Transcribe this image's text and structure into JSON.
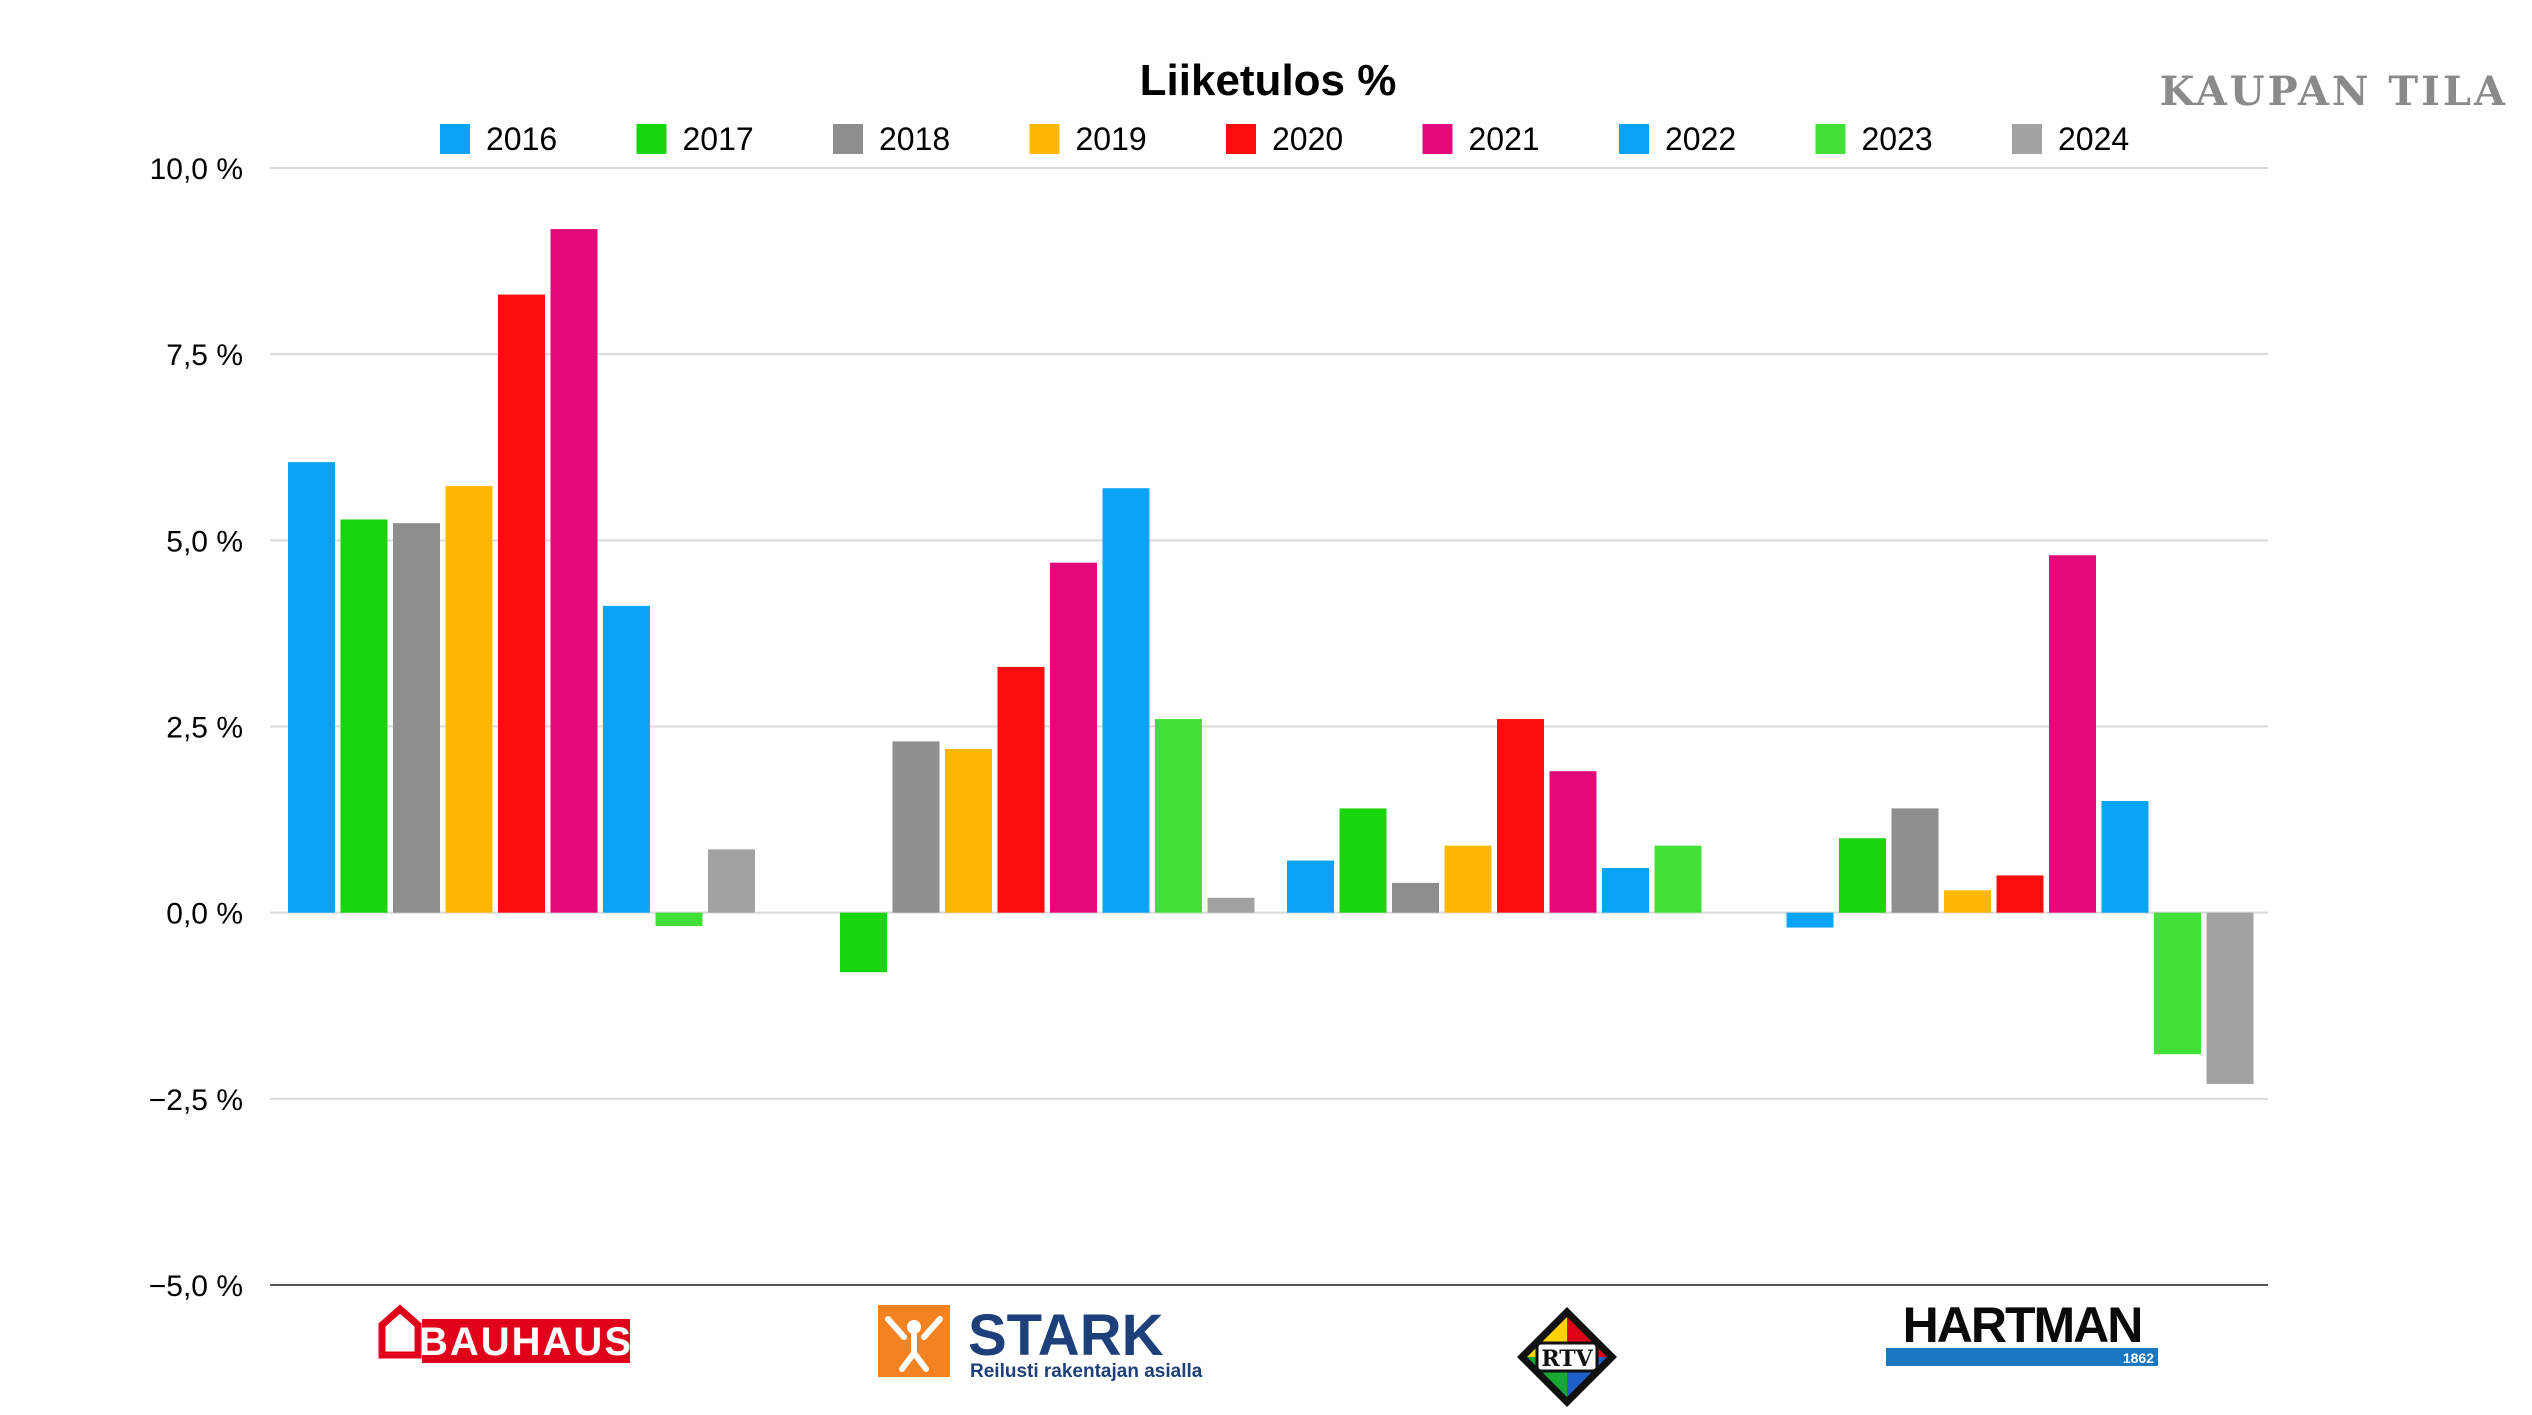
{
  "watermark": "KAUPAN TILA",
  "chart_data": {
    "type": "bar",
    "title": "Liiketulos %",
    "xlabel": "",
    "ylabel": "",
    "ylim": [
      -5.0,
      10.0
    ],
    "yticks": [
      -5.0,
      -2.5,
      0.0,
      2.5,
      5.0,
      7.5,
      10.0
    ],
    "ytick_labels": [
      "−5,0 %",
      "−2,5 %",
      "0,0 %",
      "2,5 %",
      "5,0 %",
      "7,5 %",
      "10,0 %"
    ],
    "grid": true,
    "legend_position": "top",
    "categories": [
      "BAUHAUS",
      "STARK",
      "RTV",
      "HARTMAN"
    ],
    "series": [
      {
        "name": "2016",
        "color": "#0aa3f5",
        "values": [
          6.05,
          null,
          0.7,
          -0.2
        ]
      },
      {
        "name": "2017",
        "color": "#17d60e",
        "values": [
          5.28,
          -0.8,
          1.4,
          1.0
        ]
      },
      {
        "name": "2018",
        "color": "#8e8e8e",
        "values": [
          5.23,
          2.3,
          0.4,
          1.4
        ]
      },
      {
        "name": "2019",
        "color": "#ffb703",
        "values": [
          5.73,
          2.2,
          0.9,
          0.3
        ]
      },
      {
        "name": "2020",
        "color": "#fc0d0d",
        "values": [
          8.3,
          3.3,
          2.6,
          0.5
        ]
      },
      {
        "name": "2021",
        "color": "#e4097a",
        "values": [
          9.18,
          4.7,
          1.9,
          4.8
        ]
      },
      {
        "name": "2022",
        "color": "#0aa3f5",
        "values": [
          4.12,
          5.7,
          0.6,
          1.5
        ]
      },
      {
        "name": "2023",
        "color": "#41e036",
        "values": [
          -0.18,
          2.6,
          0.9,
          -1.9
        ]
      },
      {
        "name": "2024",
        "color": "#a2a2a2",
        "values": [
          0.85,
          0.2,
          null,
          -2.3
        ]
      }
    ]
  },
  "logos": {
    "bauhaus": {
      "text": "BAUHAUS",
      "color": "#e1001a"
    },
    "stark": {
      "text": "STARK",
      "tagline": "Reilusti rakentajan asialla",
      "color": "#1d3f7a",
      "accent": "#f58220"
    },
    "rtv": {
      "text": "RTV"
    },
    "hartman": {
      "text": "HARTMAN",
      "year": "1862",
      "color": "#0a0a0a",
      "accent": "#1a78c2"
    }
  }
}
